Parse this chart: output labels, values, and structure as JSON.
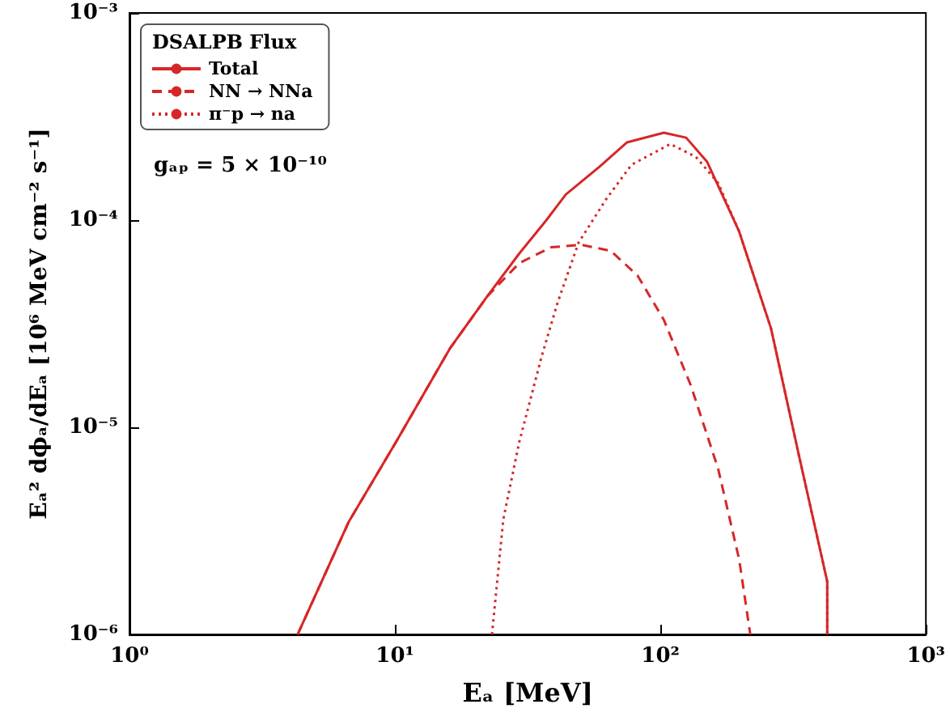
{
  "chart_data": {
    "type": "line",
    "xlabel": "Eₐ [MeV]",
    "ylabel": "Eₐ² dϕₐ/dEₐ [10⁶ MeV cm⁻² s⁻¹]",
    "legend_title": "DSALPB Flux",
    "legend": "top left",
    "log": "xy",
    "grid": false,
    "annotations": [
      "gₐₚ = 5 × 10⁻¹⁰"
    ],
    "xlim": [
      1,
      1000
    ],
    "xticks": [
      {
        "value": 1,
        "label": "10⁰"
      },
      {
        "value": 10,
        "label": "10¹"
      },
      {
        "value": 100,
        "label": "10²"
      },
      {
        "value": 1000,
        "label": "10³"
      }
    ],
    "ylim": [
      1e-06,
      0.001
    ],
    "yticks": [
      {
        "value": 1e-06,
        "label": "10⁻⁶"
      },
      {
        "value": 1e-05,
        "label": "10⁻⁵"
      },
      {
        "value": 0.0001,
        "label": "10⁻⁴"
      },
      {
        "value": 0.001,
        "label": "10⁻³"
      }
    ],
    "series": [
      {
        "name": "Total",
        "color": "#d62728",
        "line_style": "solid",
        "x": [
          4.3,
          6.7,
          10.1,
          16.1,
          22.3,
          29.4,
          37.2,
          44,
          58.9,
          74.7,
          103,
          125,
          150,
          198,
          261,
          331,
          425,
          425
        ],
        "values": [
          1e-06,
          3.5e-06,
          8.5e-06,
          2.4e-05,
          4.3e-05,
          6.9e-05,
          0.0001,
          0.000133,
          0.000181,
          0.000237,
          0.000264,
          0.00025,
          0.000191,
          8.8e-05,
          3e-05,
          7.5e-06,
          1.8e-06,
          1e-06
        ]
      },
      {
        "name": "NN → NNa",
        "color": "#d62728",
        "line_style": "dashed",
        "x": [
          4.3,
          6.7,
          10.1,
          16.1,
          22.3,
          29.4,
          38.8,
          50.6,
          65,
          82,
          103,
          130,
          165,
          198,
          218
        ],
        "values": [
          1e-06,
          3.5e-06,
          8.5e-06,
          2.4e-05,
          4.3e-05,
          6.2e-05,
          7.4e-05,
          7.6e-05,
          7.1e-05,
          5.4e-05,
          3.3e-05,
          1.6e-05,
          6.3e-06,
          2.3e-06,
          1e-06
        ]
      },
      {
        "name": "π⁻p → na",
        "color": "#d62728",
        "line_style": "dotted",
        "x": [
          23.2,
          25.6,
          29.4,
          35.7,
          41,
          49.2,
          62.4,
          77.8,
          109,
          136,
          165,
          198,
          261,
          331,
          425,
          425
        ],
        "values": [
          1e-06,
          3.6e-06,
          8.5e-06,
          2.2e-05,
          4e-05,
          7.8e-05,
          0.000126,
          0.000185,
          0.000233,
          0.000202,
          0.000151,
          8.8e-05,
          3e-05,
          7.5e-06,
          1.8e-06,
          1e-06
        ]
      }
    ]
  }
}
